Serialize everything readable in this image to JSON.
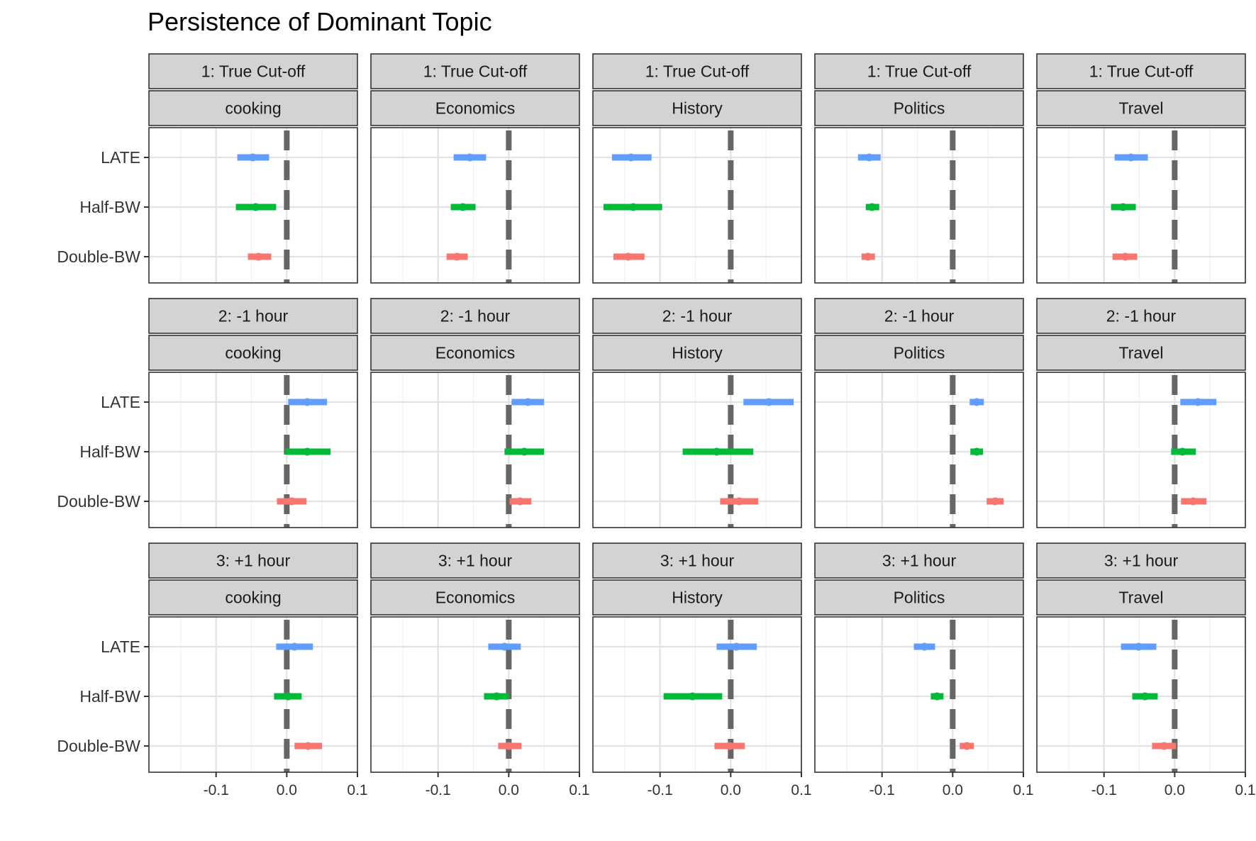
{
  "chart_data": {
    "type": "forest",
    "title": "Persistence of Dominant Topic",
    "xlabel": "",
    "ylabel": "",
    "xlim": [
      -0.195,
      0.1
    ],
    "x_ticks": [
      -0.1,
      0.0,
      0.1
    ],
    "x_tick_labels": [
      "-0.1",
      "0.0",
      "0.1"
    ],
    "reference_line": 0.0,
    "grid": true,
    "legend": "none",
    "estimators": [
      "LATE",
      "Half-BW",
      "Double-BW"
    ],
    "estimator_colors": {
      "LATE": "#619CFF",
      "Half-BW": "#00BA38",
      "Double-BW": "#F8766D"
    },
    "row_labels": [
      "1: True Cut-off",
      "2: -1 hour",
      "3: +1 hour"
    ],
    "col_labels": [
      "cooking",
      "Economics",
      "History",
      "Politics",
      "Travel"
    ],
    "panels": [
      {
        "row": "1: True Cut-off",
        "col": "cooking",
        "estimates": [
          {
            "estimator": "LATE",
            "estimate": -0.048,
            "low": -0.07,
            "high": -0.025
          },
          {
            "estimator": "Half-BW",
            "estimate": -0.044,
            "low": -0.072,
            "high": -0.015
          },
          {
            "estimator": "Double-BW",
            "estimate": -0.04,
            "low": -0.055,
            "high": -0.022
          }
        ]
      },
      {
        "row": "1: True Cut-off",
        "col": "Economics",
        "estimates": [
          {
            "estimator": "LATE",
            "estimate": -0.055,
            "low": -0.078,
            "high": -0.032
          },
          {
            "estimator": "Half-BW",
            "estimate": -0.065,
            "low": -0.082,
            "high": -0.047
          },
          {
            "estimator": "Double-BW",
            "estimate": -0.073,
            "low": -0.088,
            "high": -0.058
          }
        ]
      },
      {
        "row": "1: True Cut-off",
        "col": "History",
        "estimates": [
          {
            "estimator": "LATE",
            "estimate": -0.141,
            "low": -0.168,
            "high": -0.112
          },
          {
            "estimator": "Half-BW",
            "estimate": -0.138,
            "low": -0.18,
            "high": -0.097
          },
          {
            "estimator": "Double-BW",
            "estimate": -0.145,
            "low": -0.166,
            "high": -0.122
          }
        ]
      },
      {
        "row": "1: True Cut-off",
        "col": "Politics",
        "estimates": [
          {
            "estimator": "LATE",
            "estimate": -0.118,
            "low": -0.134,
            "high": -0.102
          },
          {
            "estimator": "Half-BW",
            "estimate": -0.114,
            "low": -0.123,
            "high": -0.104
          },
          {
            "estimator": "Double-BW",
            "estimate": -0.12,
            "low": -0.129,
            "high": -0.11
          }
        ]
      },
      {
        "row": "1: True Cut-off",
        "col": "Travel",
        "estimates": [
          {
            "estimator": "LATE",
            "estimate": -0.062,
            "low": -0.085,
            "high": -0.038
          },
          {
            "estimator": "Half-BW",
            "estimate": -0.073,
            "low": -0.09,
            "high": -0.055
          },
          {
            "estimator": "Double-BW",
            "estimate": -0.07,
            "low": -0.088,
            "high": -0.053
          }
        ]
      },
      {
        "row": "2: -1 hour",
        "col": "cooking",
        "estimates": [
          {
            "estimator": "LATE",
            "estimate": 0.029,
            "low": 0.002,
            "high": 0.057
          },
          {
            "estimator": "Half-BW",
            "estimate": 0.029,
            "low": -0.002,
            "high": 0.062
          },
          {
            "estimator": "Double-BW",
            "estimate": 0.007,
            "low": -0.014,
            "high": 0.028
          }
        ]
      },
      {
        "row": "2: -1 hour",
        "col": "Economics",
        "estimates": [
          {
            "estimator": "LATE",
            "estimate": 0.027,
            "low": 0.004,
            "high": 0.05
          },
          {
            "estimator": "Half-BW",
            "estimate": 0.022,
            "low": -0.006,
            "high": 0.05
          },
          {
            "estimator": "Double-BW",
            "estimate": 0.016,
            "low": 0.001,
            "high": 0.032
          }
        ]
      },
      {
        "row": "2: -1 hour",
        "col": "History",
        "estimates": [
          {
            "estimator": "LATE",
            "estimate": 0.054,
            "low": 0.018,
            "high": 0.089
          },
          {
            "estimator": "Half-BW",
            "estimate": -0.02,
            "low": -0.068,
            "high": 0.032
          },
          {
            "estimator": "Double-BW",
            "estimate": 0.012,
            "low": -0.015,
            "high": 0.039
          }
        ]
      },
      {
        "row": "2: -1 hour",
        "col": "Politics",
        "estimates": [
          {
            "estimator": "LATE",
            "estimate": 0.034,
            "low": 0.024,
            "high": 0.044
          },
          {
            "estimator": "Half-BW",
            "estimate": 0.034,
            "low": 0.025,
            "high": 0.043
          },
          {
            "estimator": "Double-BW",
            "estimate": 0.06,
            "low": 0.048,
            "high": 0.072
          }
        ]
      },
      {
        "row": "2: -1 hour",
        "col": "Travel",
        "estimates": [
          {
            "estimator": "LATE",
            "estimate": 0.033,
            "low": 0.008,
            "high": 0.059
          },
          {
            "estimator": "Half-BW",
            "estimate": 0.011,
            "low": -0.005,
            "high": 0.03
          },
          {
            "estimator": "Double-BW",
            "estimate": 0.026,
            "low": 0.009,
            "high": 0.045
          }
        ]
      },
      {
        "row": "3: +1 hour",
        "col": "cooking",
        "estimates": [
          {
            "estimator": "LATE",
            "estimate": 0.011,
            "low": -0.015,
            "high": 0.037
          },
          {
            "estimator": "Half-BW",
            "estimate": 0.002,
            "low": -0.018,
            "high": 0.021
          },
          {
            "estimator": "Double-BW",
            "estimate": 0.03,
            "low": 0.011,
            "high": 0.05
          }
        ]
      },
      {
        "row": "3: +1 hour",
        "col": "Economics",
        "estimates": [
          {
            "estimator": "LATE",
            "estimate": -0.006,
            "low": -0.029,
            "high": 0.017
          },
          {
            "estimator": "Half-BW",
            "estimate": -0.017,
            "low": -0.035,
            "high": 0.0
          },
          {
            "estimator": "Double-BW",
            "estimate": 0.0,
            "low": -0.015,
            "high": 0.018
          }
        ]
      },
      {
        "row": "3: +1 hour",
        "col": "History",
        "estimates": [
          {
            "estimator": "LATE",
            "estimate": 0.008,
            "low": -0.02,
            "high": 0.037
          },
          {
            "estimator": "Half-BW",
            "estimate": -0.054,
            "low": -0.095,
            "high": -0.012
          },
          {
            "estimator": "Double-BW",
            "estimate": -0.002,
            "low": -0.023,
            "high": 0.02
          }
        ]
      },
      {
        "row": "3: +1 hour",
        "col": "Politics",
        "estimates": [
          {
            "estimator": "LATE",
            "estimate": -0.04,
            "low": -0.055,
            "high": -0.025
          },
          {
            "estimator": "Half-BW",
            "estimate": -0.022,
            "low": -0.031,
            "high": -0.013
          },
          {
            "estimator": "Double-BW",
            "estimate": 0.02,
            "low": 0.01,
            "high": 0.03
          }
        ]
      },
      {
        "row": "3: +1 hour",
        "col": "Travel",
        "estimates": [
          {
            "estimator": "LATE",
            "estimate": -0.051,
            "low": -0.076,
            "high": -0.026
          },
          {
            "estimator": "Half-BW",
            "estimate": -0.042,
            "low": -0.06,
            "high": -0.024
          },
          {
            "estimator": "Double-BW",
            "estimate": -0.015,
            "low": -0.032,
            "high": 0.002
          }
        ]
      }
    ]
  }
}
